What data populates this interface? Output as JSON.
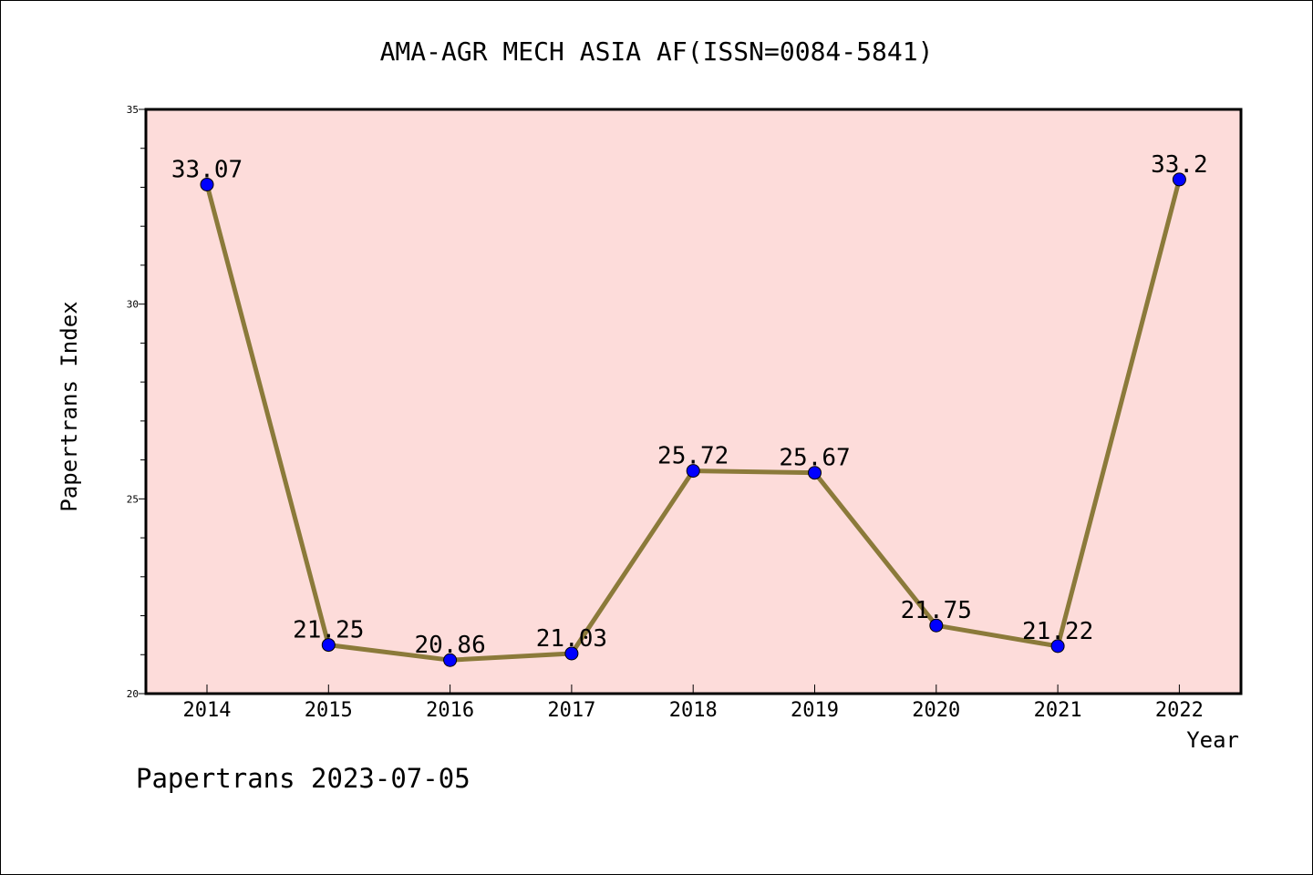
{
  "chart_data": {
    "type": "line",
    "title": "AMA-AGR MECH ASIA AF(ISSN=0084-5841)",
    "xlabel": "Year",
    "ylabel": "Papertrans Index",
    "categories": [
      "2014",
      "2015",
      "2016",
      "2017",
      "2018",
      "2019",
      "2020",
      "2021",
      "2022"
    ],
    "series": [
      {
        "values": [
          33.07,
          21.25,
          20.86,
          21.03,
          25.72,
          25.67,
          21.75,
          21.22,
          33.2
        ],
        "labels": [
          "33.07",
          "21.25",
          "20.86",
          "21.03",
          "25.72",
          "25.67",
          "21.75",
          "21.22",
          "33.2"
        ]
      }
    ],
    "ylim": [
      20,
      35
    ],
    "yticks": [
      "20",
      "25",
      "30",
      "35"
    ],
    "grid": false,
    "legend": "none",
    "colors": {
      "plot_background": "#FDDCDA",
      "line": "#8B7A3A",
      "marker": "#0000FF",
      "marker_edge": "#000000"
    }
  },
  "footer": {
    "text": "Papertrans 2023-07-05"
  }
}
